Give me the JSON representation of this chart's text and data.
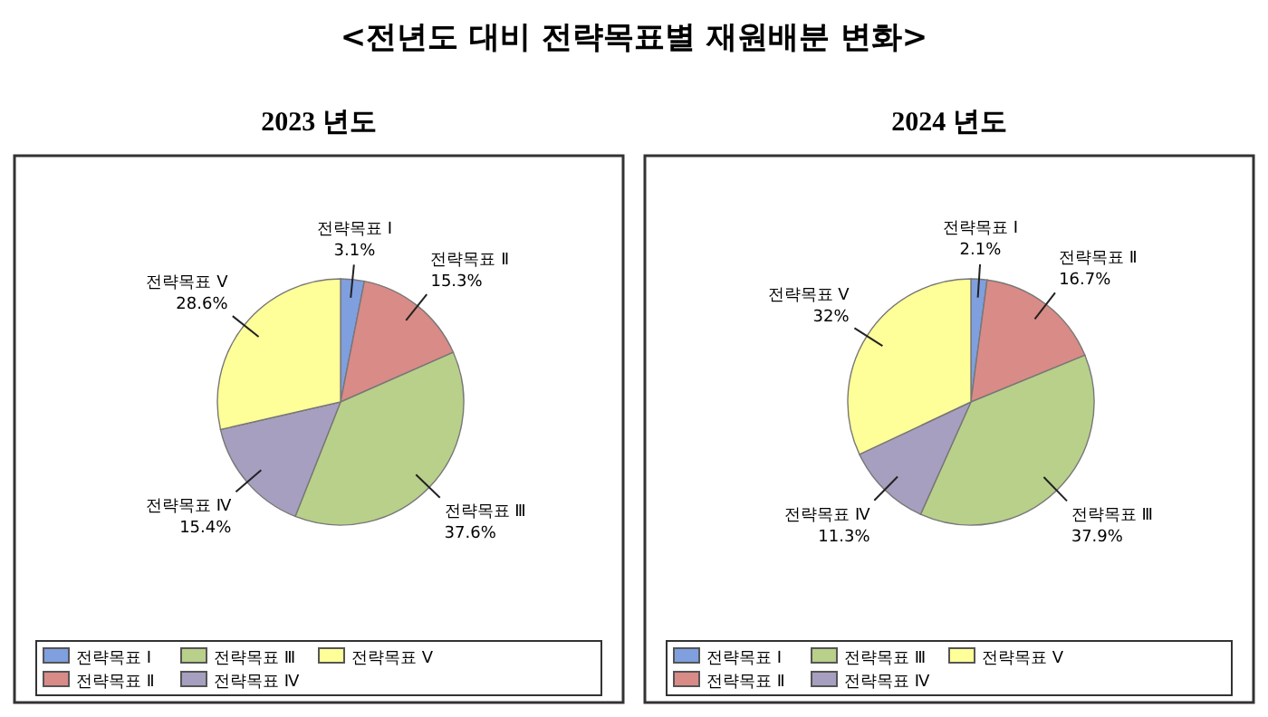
{
  "chart_data": [
    {
      "type": "pie",
      "title": "<전년도 대비 전략목표별 재원배분 변화>",
      "subtitle": "2023 년도",
      "categories": [
        "전략목표 Ⅰ",
        "전략목표 Ⅱ",
        "전략목표 Ⅲ",
        "전략목표 Ⅳ",
        "전략목표 Ⅴ"
      ],
      "values": [
        3.1,
        15.3,
        37.6,
        15.4,
        28.6
      ],
      "value_labels": [
        "3.1%",
        "15.3%",
        "37.6%",
        "15.4%",
        "28.6%"
      ],
      "colors": [
        "#7f9fdf",
        "#d98b87",
        "#b8d08a",
        "#a79fbf",
        "#ffff99"
      ],
      "legend": "bottom"
    },
    {
      "type": "pie",
      "subtitle": "2024 년도",
      "categories": [
        "전략목표 Ⅰ",
        "전략목표 Ⅱ",
        "전략목표 Ⅲ",
        "전략목표 Ⅳ",
        "전략목표 Ⅴ"
      ],
      "values": [
        2.1,
        16.7,
        37.9,
        11.3,
        32
      ],
      "value_labels": [
        "2.1%",
        "16.7%",
        "37.9%",
        "11.3%",
        "32%"
      ],
      "colors": [
        "#7f9fdf",
        "#d98b87",
        "#b8d08a",
        "#a79fbf",
        "#ffff99"
      ],
      "legend": "bottom"
    }
  ]
}
